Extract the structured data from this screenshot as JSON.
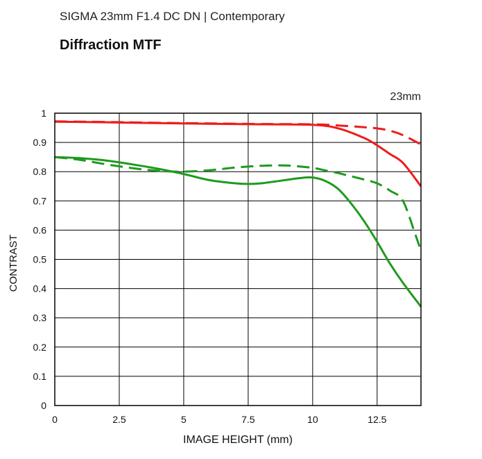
{
  "header": {
    "title": "SIGMA 23mm F1.4 DC DN | Contemporary"
  },
  "chart_data": {
    "type": "line",
    "title": "Diffraction MTF",
    "focal_label": "23mm",
    "xlabel": "IMAGE HEIGHT (mm)",
    "ylabel": "CONTRAST",
    "xlim": [
      0,
      14.2
    ],
    "ylim": [
      0,
      1
    ],
    "xticks": [
      0,
      2.5,
      5,
      7.5,
      10,
      12.5
    ],
    "xtick_labels": [
      "0",
      "2.5",
      "5",
      "7.5",
      "10",
      "12.5"
    ],
    "yticks": [
      0,
      0.1,
      0.2,
      0.3,
      0.4,
      0.5,
      0.6,
      0.7,
      0.8,
      0.9,
      1
    ],
    "ytick_labels": [
      "0",
      "0.1",
      "0.2",
      "0.3",
      "0.4",
      "0.5",
      "0.6",
      "0.7",
      "0.8",
      "0.9",
      "1"
    ],
    "grid": true,
    "series": [
      {
        "name": "red-solid",
        "color": "#ee1c1c",
        "dash": false,
        "x": [
          0,
          2,
          4,
          6,
          8,
          10,
          11,
          12,
          12.5,
          13,
          13.5,
          14.2
        ],
        "y": [
          0.971,
          0.969,
          0.966,
          0.964,
          0.962,
          0.96,
          0.948,
          0.915,
          0.89,
          0.86,
          0.83,
          0.75
        ]
      },
      {
        "name": "red-dashed",
        "color": "#ee1c1c",
        "dash": true,
        "x": [
          0,
          2,
          4,
          6,
          8,
          10,
          11,
          12,
          12.5,
          13,
          13.5,
          14.2
        ],
        "y": [
          0.972,
          0.97,
          0.967,
          0.965,
          0.963,
          0.962,
          0.958,
          0.952,
          0.948,
          0.94,
          0.925,
          0.893
        ]
      },
      {
        "name": "green-solid",
        "color": "#1e9a1e",
        "dash": false,
        "x": [
          0,
          1,
          2,
          3,
          4,
          5,
          6,
          7,
          7.5,
          8,
          9,
          9.5,
          10,
          10.5,
          11,
          11.5,
          12,
          12.5,
          13,
          13.5,
          14.2
        ],
        "y": [
          0.85,
          0.846,
          0.838,
          0.825,
          0.81,
          0.792,
          0.771,
          0.76,
          0.758,
          0.76,
          0.772,
          0.778,
          0.78,
          0.768,
          0.74,
          0.69,
          0.63,
          0.56,
          0.485,
          0.42,
          0.338
        ]
      },
      {
        "name": "green-dashed",
        "color": "#1e9a1e",
        "dash": true,
        "x": [
          0,
          1,
          2,
          3,
          4,
          5,
          6,
          7,
          8,
          9,
          10,
          10.5,
          11,
          11.5,
          12,
          12.5,
          13,
          13.5,
          14,
          14.2
        ],
        "y": [
          0.85,
          0.84,
          0.825,
          0.812,
          0.803,
          0.8,
          0.805,
          0.814,
          0.82,
          0.821,
          0.813,
          0.804,
          0.795,
          0.784,
          0.773,
          0.76,
          0.735,
          0.7,
          0.58,
          0.53
        ]
      }
    ]
  }
}
